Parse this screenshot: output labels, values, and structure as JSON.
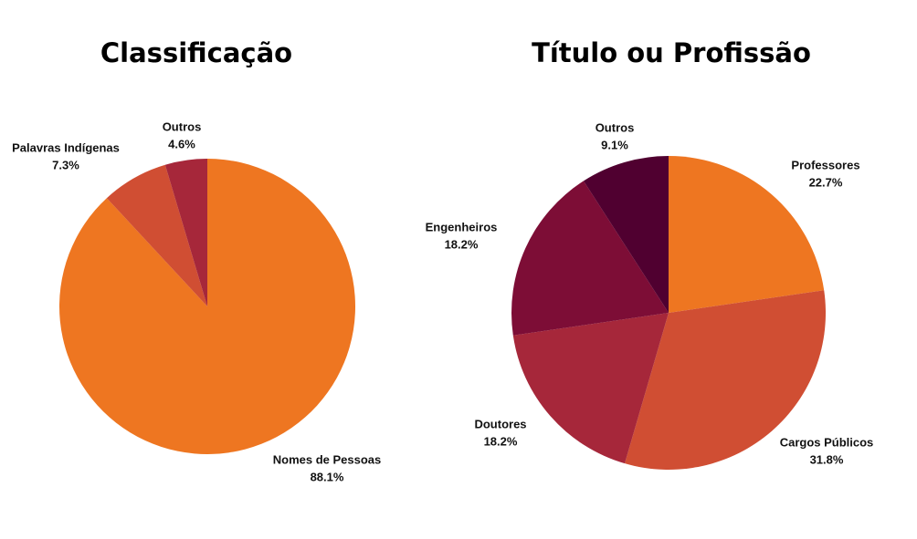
{
  "chart_data": [
    {
      "type": "pie",
      "title": "Classificação",
      "categories": [
        "Nomes de Pessoas",
        "Palavras Indígenas",
        "Outros"
      ],
      "values": [
        88.1,
        7.3,
        4.6
      ],
      "value_labels": [
        "88.1%",
        "7.3%",
        "4.6%"
      ],
      "colors": [
        "#ee7621",
        "#d04e33",
        "#a6273a"
      ]
    },
    {
      "type": "pie",
      "title": "Título ou Profissão",
      "categories": [
        "Professores",
        "Cargos Públicos",
        "Doutores",
        "Engenheiros",
        "Outros"
      ],
      "values": [
        22.7,
        31.8,
        18.2,
        18.2,
        9.1
      ],
      "value_labels": [
        "22.7%",
        "31.8%",
        "18.2%",
        "18.2%",
        "9.1%"
      ],
      "colors": [
        "#ee7621",
        "#d04e33",
        "#a6273a",
        "#7d0d36",
        "#500030"
      ]
    }
  ]
}
